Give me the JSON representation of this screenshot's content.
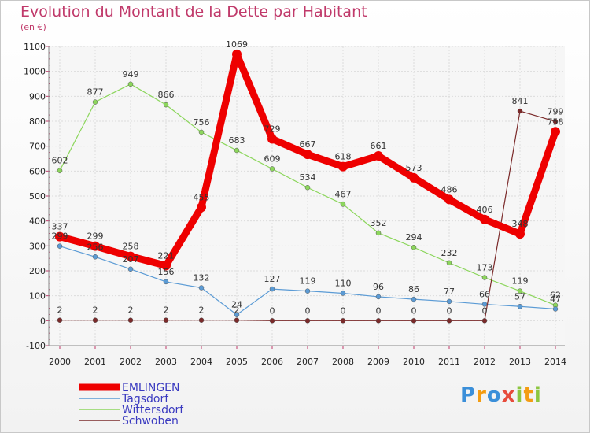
{
  "chart_data": {
    "type": "line",
    "title": "Evolution du Montant de la Dette par Habitant",
    "subtitle": "(en €)",
    "x": [
      "2000",
      "2001",
      "2002",
      "2003",
      "2004",
      "2005",
      "2006",
      "2007",
      "2008",
      "2009",
      "2010",
      "2011",
      "2012",
      "2013",
      "2014"
    ],
    "ylim": [
      -100,
      1100
    ],
    "yticks": [
      -100,
      0,
      100,
      200,
      300,
      400,
      500,
      600,
      700,
      800,
      900,
      1000,
      1100
    ],
    "grid": true,
    "legend_position": "bottom-left",
    "series": [
      {
        "name": "EMLINGEN",
        "color": "#ee0000",
        "width": 9,
        "values": [
          337,
          299,
          258,
          221,
          455,
          1069,
          729,
          667,
          618,
          661,
          573,
          486,
          406,
          348,
          758
        ]
      },
      {
        "name": "Tagsdorf",
        "color": "#5b9bd5",
        "width": 1.2,
        "values": [
          299,
          256,
          207,
          156,
          132,
          24,
          127,
          119,
          110,
          96,
          86,
          77,
          66,
          57,
          47
        ]
      },
      {
        "name": "Wittersdorf",
        "color": "#8cd65c",
        "width": 1.2,
        "values": [
          602,
          877,
          949,
          866,
          756,
          683,
          609,
          534,
          467,
          352,
          294,
          232,
          173,
          119,
          62
        ]
      },
      {
        "name": "Schwoben",
        "color": "#7b2a2a",
        "width": 1.2,
        "values": [
          2,
          2,
          2,
          2,
          2,
          2,
          0,
          0,
          0,
          0,
          0,
          0,
          0,
          841,
          799
        ]
      }
    ]
  },
  "logo": {
    "letters": [
      "P",
      "r",
      "o",
      "x",
      "i",
      "t",
      "i"
    ],
    "colors": [
      "#3b8fd9",
      "#f39c12",
      "#3b8fd9",
      "#e74c3c",
      "#8cc63f",
      "#f39c12",
      "#8cc63f"
    ]
  }
}
